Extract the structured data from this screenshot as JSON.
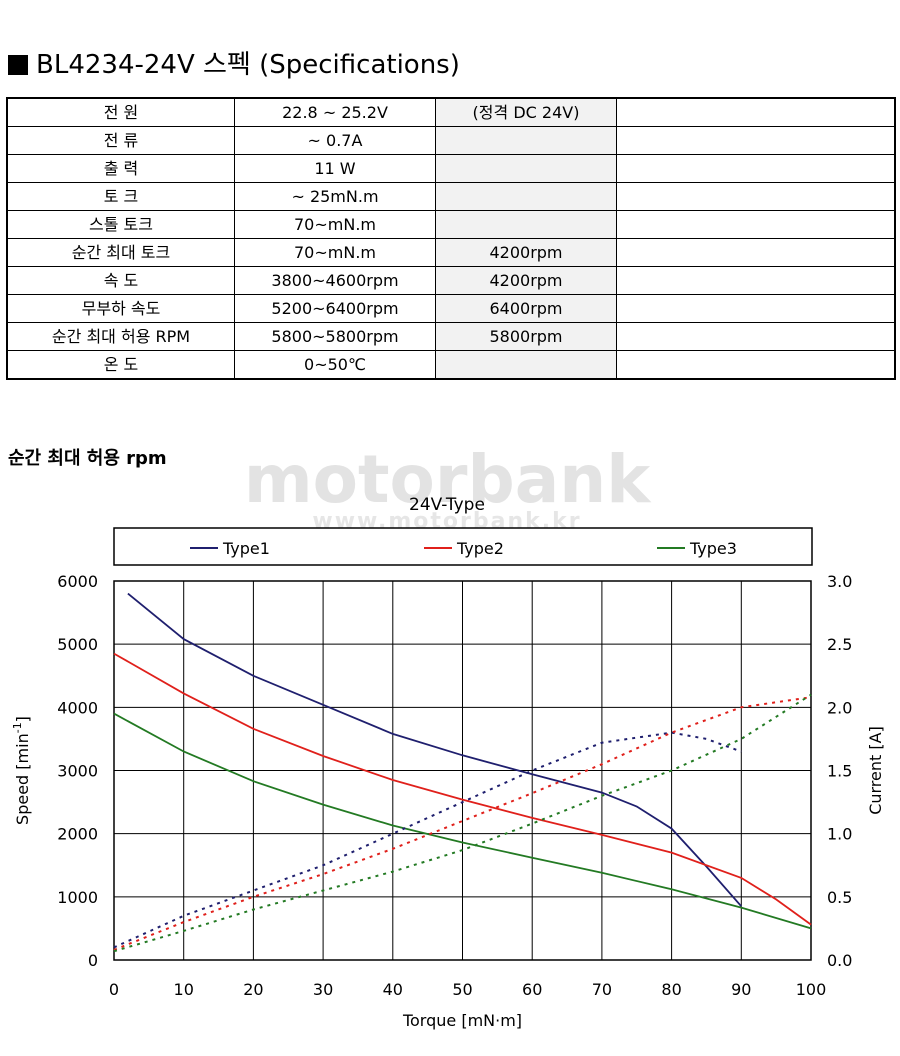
{
  "heading": {
    "text": "BL4234-24V 스펙 (Specifications)"
  },
  "spec_rows": [
    {
      "name": "전 원",
      "value": "22.8 ~ 25.2V",
      "note": "(정격 DC 24V)"
    },
    {
      "name": "전 류",
      "value": "~ 0.7A",
      "note": ""
    },
    {
      "name": "출 력",
      "value": "11 W",
      "note": ""
    },
    {
      "name": "토 크",
      "value": "~ 25mN.m",
      "note": ""
    },
    {
      "name": "스톨 토크",
      "value": "70~mN.m",
      "note": ""
    },
    {
      "name": "순간 최대 토크",
      "value": "70~mN.m",
      "note": "4200rpm"
    },
    {
      "name": "속 도",
      "value": "3800~4600rpm",
      "note": "4200rpm"
    },
    {
      "name": "무부하 속도",
      "value": "5200~6400rpm",
      "note": "6400rpm"
    },
    {
      "name": "순간 최대 허용 RPM",
      "value": "5800~5800rpm",
      "note": "5800rpm"
    },
    {
      "name": "온 도",
      "value": "0~50℃",
      "note": ""
    }
  ],
  "section_label": "순간 최대 허용 rpm",
  "watermark": {
    "line1": "motorbank",
    "line2": "www.motorbank.kr"
  },
  "chart_data": {
    "type": "line",
    "title": "24V-Type",
    "xlabel": "Torque [mN·m]",
    "ylabel": "Speed [min-1]",
    "ylabel_base": "Speed [min",
    "ylabel_sup": "-1",
    "ylabel_end": "]",
    "y2label": "Current [A]",
    "xlim": [
      0,
      100
    ],
    "ylim": [
      0,
      6000
    ],
    "y2lim": [
      0,
      3.0
    ],
    "xticks": [
      "0",
      "10",
      "20",
      "30",
      "40",
      "50",
      "60",
      "70",
      "80",
      "90",
      "100"
    ],
    "yticks": [
      "0",
      "1000",
      "2000",
      "3000",
      "4000",
      "5000",
      "6000"
    ],
    "y2ticks": [
      "0.0",
      "0.5",
      "1.0",
      "1.5",
      "2.0",
      "2.5",
      "3.0"
    ],
    "grid": true,
    "legend_position": "top",
    "colors": {
      "Type1": "#1f1f6e",
      "Type2": "#e0201b",
      "Type3": "#237a23"
    },
    "series": [
      {
        "name": "Type1",
        "axis": "speed",
        "x": [
          2,
          10,
          20,
          30,
          40,
          50,
          60,
          70,
          75,
          80,
          85,
          90
        ],
        "y": [
          5800,
          5080,
          4500,
          4040,
          3580,
          3240,
          2940,
          2650,
          2430,
          2080,
          1480,
          850
        ]
      },
      {
        "name": "Type2",
        "axis": "speed",
        "x": [
          0,
          10,
          20,
          30,
          40,
          50,
          60,
          70,
          80,
          90,
          95,
          100
        ],
        "y": [
          4850,
          4220,
          3660,
          3230,
          2850,
          2540,
          2250,
          1980,
          1700,
          1300,
          960,
          560
        ]
      },
      {
        "name": "Type3",
        "axis": "speed",
        "x": [
          0,
          10,
          20,
          30,
          40,
          50,
          60,
          70,
          80,
          90,
          100
        ],
        "y": [
          3900,
          3300,
          2830,
          2460,
          2130,
          1860,
          1620,
          1380,
          1120,
          830,
          500
        ]
      },
      {
        "name": "Type1 current",
        "axis": "current",
        "dashed": true,
        "x": [
          0,
          10,
          20,
          30,
          40,
          50,
          60,
          70,
          80,
          85,
          90
        ],
        "y": [
          0.1,
          0.35,
          0.55,
          0.75,
          1.0,
          1.25,
          1.5,
          1.72,
          1.8,
          1.75,
          1.65
        ]
      },
      {
        "name": "Type2 current",
        "axis": "current",
        "dashed": true,
        "x": [
          0,
          10,
          20,
          30,
          40,
          50,
          60,
          70,
          80,
          90,
          100
        ],
        "y": [
          0.08,
          0.3,
          0.5,
          0.68,
          0.88,
          1.1,
          1.32,
          1.55,
          1.8,
          2.0,
          2.08
        ]
      },
      {
        "name": "Type3 current",
        "axis": "current",
        "dashed": true,
        "x": [
          0,
          10,
          20,
          30,
          40,
          50,
          60,
          70,
          80,
          90,
          100
        ],
        "y": [
          0.07,
          0.23,
          0.4,
          0.55,
          0.7,
          0.87,
          1.08,
          1.3,
          1.5,
          1.75,
          2.1
        ]
      }
    ]
  }
}
